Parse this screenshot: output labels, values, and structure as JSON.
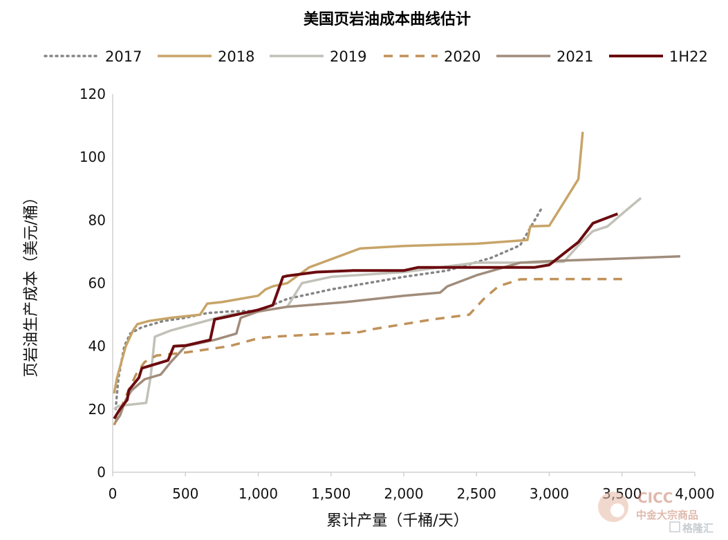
{
  "chart_data": {
    "type": "line",
    "title": "美国页岩油成本曲线估计",
    "xlabel": "累计产量（千桶/天）",
    "ylabel": "页岩油生产成本（美元/桶）",
    "xlim": [
      0,
      4000
    ],
    "ylim": [
      0,
      120
    ],
    "xticks": [
      0,
      500,
      1000,
      1500,
      2000,
      2500,
      3000,
      3500,
      4000
    ],
    "xtick_labels": [
      "0",
      "500",
      "1,000",
      "1,500",
      "2,000",
      "2,500",
      "3,000",
      "3,500",
      "4,000"
    ],
    "yticks": [
      0,
      20,
      40,
      60,
      80,
      100,
      120
    ],
    "ytick_labels": [
      "0",
      "20",
      "40",
      "60",
      "80",
      "100",
      "120"
    ],
    "grid": false,
    "legend_position": "top",
    "series": [
      {
        "name": "2017",
        "color": "#858585",
        "style": "dotted",
        "points": [
          [
            20,
            20
          ],
          [
            40,
            30
          ],
          [
            60,
            35
          ],
          [
            80,
            40
          ],
          [
            120,
            44
          ],
          [
            200,
            46
          ],
          [
            350,
            48
          ],
          [
            500,
            49
          ],
          [
            650,
            50.5
          ],
          [
            800,
            51
          ],
          [
            1000,
            51.2
          ],
          [
            1200,
            55
          ],
          [
            1500,
            58
          ],
          [
            2000,
            62
          ],
          [
            2300,
            64
          ],
          [
            2600,
            68
          ],
          [
            2800,
            72
          ],
          [
            2950,
            84
          ]
        ]
      },
      {
        "name": "2018",
        "color": "#c7a468",
        "style": "solid",
        "points": [
          [
            10,
            25
          ],
          [
            30,
            30
          ],
          [
            60,
            35
          ],
          [
            90,
            40
          ],
          [
            140,
            45
          ],
          [
            170,
            47
          ],
          [
            250,
            48
          ],
          [
            400,
            49
          ],
          [
            600,
            50
          ],
          [
            650,
            53.5
          ],
          [
            750,
            54
          ],
          [
            1000,
            56
          ],
          [
            1050,
            58
          ],
          [
            1100,
            59
          ],
          [
            1200,
            60
          ],
          [
            1350,
            65
          ],
          [
            1700,
            71
          ],
          [
            2000,
            71.8
          ],
          [
            2500,
            72.5
          ],
          [
            2850,
            73.7
          ],
          [
            2870,
            78
          ],
          [
            3000,
            78.2
          ],
          [
            3200,
            93
          ],
          [
            3230,
            108
          ]
        ]
      },
      {
        "name": "2019",
        "color": "#c2c1b8",
        "style": "solid",
        "points": [
          [
            10,
            20
          ],
          [
            40,
            21
          ],
          [
            130,
            21.5
          ],
          [
            230,
            22
          ],
          [
            260,
            30
          ],
          [
            290,
            43
          ],
          [
            400,
            45
          ],
          [
            600,
            47.5
          ],
          [
            800,
            50
          ],
          [
            1000,
            51
          ],
          [
            1200,
            52.5
          ],
          [
            1300,
            60
          ],
          [
            1500,
            62
          ],
          [
            2000,
            63.5
          ],
          [
            2500,
            66.5
          ],
          [
            2900,
            66.5
          ],
          [
            3100,
            66.8
          ],
          [
            3200,
            72
          ],
          [
            3300,
            76.5
          ],
          [
            3400,
            78
          ],
          [
            3500,
            82
          ],
          [
            3630,
            87
          ]
        ]
      },
      {
        "name": "2020",
        "color": "#c09158",
        "style": "dashed",
        "points": [
          [
            10,
            15
          ],
          [
            30,
            17
          ],
          [
            80,
            23
          ],
          [
            160,
            31
          ],
          [
            220,
            35
          ],
          [
            300,
            37
          ],
          [
            500,
            38
          ],
          [
            800,
            40
          ],
          [
            1000,
            42.5
          ],
          [
            1100,
            43
          ],
          [
            1300,
            43.5
          ],
          [
            1600,
            44.2
          ],
          [
            1700,
            44.5
          ],
          [
            1800,
            45.5
          ],
          [
            2000,
            47
          ],
          [
            2200,
            48.5
          ],
          [
            2450,
            50
          ],
          [
            2550,
            55
          ],
          [
            2650,
            59
          ],
          [
            2800,
            61.2
          ],
          [
            2950,
            61.3
          ],
          [
            3500,
            61.3
          ]
        ]
      },
      {
        "name": "2021",
        "color": "#a08c7b",
        "style": "solid",
        "points": [
          [
            20,
            16
          ],
          [
            50,
            18
          ],
          [
            90,
            23
          ],
          [
            130,
            26
          ],
          [
            220,
            29.5
          ],
          [
            330,
            31
          ],
          [
            400,
            35
          ],
          [
            500,
            40
          ],
          [
            700,
            42
          ],
          [
            850,
            44
          ],
          [
            880,
            49
          ],
          [
            1000,
            51
          ],
          [
            1200,
            52.5
          ],
          [
            1600,
            54
          ],
          [
            2000,
            56
          ],
          [
            2250,
            57
          ],
          [
            2300,
            59
          ],
          [
            2500,
            62.5
          ],
          [
            2800,
            66.5
          ],
          [
            3000,
            67
          ],
          [
            3500,
            67.8
          ],
          [
            3900,
            68.5
          ]
        ]
      },
      {
        "name": "1H22",
        "color": "#6b0b0f",
        "style": "solid",
        "points": [
          [
            10,
            17
          ],
          [
            50,
            20
          ],
          [
            100,
            23
          ],
          [
            110,
            26
          ],
          [
            180,
            30
          ],
          [
            200,
            33
          ],
          [
            380,
            35.5
          ],
          [
            420,
            40
          ],
          [
            500,
            40.2
          ],
          [
            670,
            42
          ],
          [
            700,
            48.5
          ],
          [
            800,
            49.5
          ],
          [
            1000,
            51.5
          ],
          [
            1100,
            53
          ],
          [
            1170,
            62
          ],
          [
            1200,
            62.3
          ],
          [
            1400,
            63.5
          ],
          [
            1650,
            64
          ],
          [
            2000,
            64
          ],
          [
            2100,
            65
          ],
          [
            2900,
            65
          ],
          [
            3000,
            65.8
          ],
          [
            3200,
            73
          ],
          [
            3300,
            79
          ],
          [
            3470,
            82
          ]
        ]
      }
    ]
  },
  "watermark": {
    "logo_text": "CICC",
    "subtitle": "中金大宗商品",
    "site_text": "格隆汇"
  }
}
